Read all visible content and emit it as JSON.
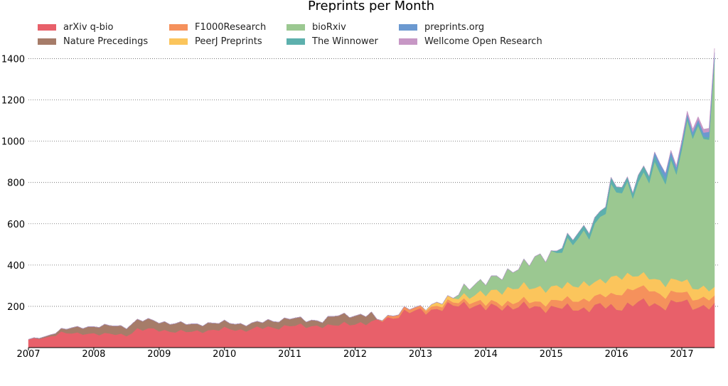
{
  "chart_data": {
    "type": "area",
    "stacked": true,
    "title": "Preprints per Month",
    "xlabel": "",
    "ylabel": "",
    "ylim": [
      0,
      1470
    ],
    "x_start": "2007-01",
    "x_end": "2017-06",
    "xticks": [
      "2007",
      "2008",
      "2009",
      "2010",
      "2011",
      "2012",
      "2013",
      "2014",
      "2015",
      "2016",
      "2017"
    ],
    "yticks": [
      200,
      400,
      600,
      800,
      1000,
      1200,
      1400
    ],
    "grid": "horizontal dotted",
    "legend_position": "top-left, 4 columns",
    "series": [
      {
        "name": "arXiv q-bio",
        "color": "#e8606a",
        "anchors": [
          [
            0,
            40
          ],
          [
            3,
            45
          ],
          [
            6,
            75
          ],
          [
            9,
            65
          ],
          [
            12,
            70
          ],
          [
            15,
            65
          ],
          [
            18,
            60
          ],
          [
            20,
            90
          ],
          [
            24,
            85
          ],
          [
            27,
            80
          ],
          [
            30,
            75
          ],
          [
            33,
            85
          ],
          [
            36,
            90
          ],
          [
            39,
            85
          ],
          [
            42,
            95
          ],
          [
            45,
            95
          ],
          [
            48,
            110
          ],
          [
            51,
            100
          ],
          [
            54,
            110
          ],
          [
            56,
            105
          ],
          [
            60,
            120
          ],
          [
            63,
            120
          ],
          [
            66,
            140
          ],
          [
            69,
            170
          ],
          [
            72,
            175
          ],
          [
            75,
            190
          ],
          [
            78,
            200
          ],
          [
            81,
            215
          ],
          [
            84,
            190
          ],
          [
            87,
            200
          ],
          [
            90,
            200
          ],
          [
            93,
            195
          ],
          [
            96,
            195
          ],
          [
            99,
            190
          ],
          [
            102,
            190
          ],
          [
            105,
            200
          ],
          [
            108,
            195
          ],
          [
            111,
            210
          ],
          [
            114,
            220
          ],
          [
            117,
            200
          ],
          [
            120,
            225
          ],
          [
            123,
            200
          ],
          [
            126,
            195
          ]
        ]
      },
      {
        "name": "Nature Precedings",
        "color": "#a67c69",
        "anchors": [
          [
            0,
            0
          ],
          [
            3,
            5
          ],
          [
            6,
            15
          ],
          [
            9,
            30
          ],
          [
            12,
            35
          ],
          [
            15,
            40
          ],
          [
            18,
            40
          ],
          [
            20,
            45
          ],
          [
            24,
            40
          ],
          [
            27,
            40
          ],
          [
            30,
            35
          ],
          [
            33,
            35
          ],
          [
            36,
            30
          ],
          [
            39,
            30
          ],
          [
            42,
            25
          ],
          [
            45,
            35
          ],
          [
            48,
            35
          ],
          [
            51,
            30
          ],
          [
            54,
            25
          ],
          [
            56,
            45
          ],
          [
            60,
            40
          ],
          [
            63,
            40
          ],
          [
            64,
            0
          ],
          [
            126,
            0
          ]
        ]
      },
      {
        "name": "F1000Research",
        "color": "#f5915c",
        "anchors": [
          [
            0,
            0
          ],
          [
            64,
            0
          ],
          [
            66,
            10
          ],
          [
            69,
            15
          ],
          [
            72,
            15
          ],
          [
            75,
            15
          ],
          [
            78,
            15
          ],
          [
            81,
            20
          ],
          [
            84,
            20
          ],
          [
            87,
            20
          ],
          [
            90,
            25
          ],
          [
            93,
            25
          ],
          [
            96,
            30
          ],
          [
            99,
            40
          ],
          [
            102,
            45
          ],
          [
            105,
            45
          ],
          [
            108,
            70
          ],
          [
            111,
            70
          ],
          [
            114,
            70
          ],
          [
            117,
            50
          ],
          [
            120,
            45
          ],
          [
            123,
            40
          ],
          [
            126,
            40
          ]
        ]
      },
      {
        "name": "PeerJ Preprints",
        "color": "#fbc55c",
        "anchors": [
          [
            0,
            0
          ],
          [
            72,
            0
          ],
          [
            75,
            15
          ],
          [
            78,
            20
          ],
          [
            81,
            25
          ],
          [
            84,
            50
          ],
          [
            87,
            60
          ],
          [
            90,
            70
          ],
          [
            93,
            70
          ],
          [
            96,
            65
          ],
          [
            99,
            70
          ],
          [
            102,
            75
          ],
          [
            105,
            70
          ],
          [
            108,
            85
          ],
          [
            111,
            65
          ],
          [
            114,
            60
          ],
          [
            117,
            60
          ],
          [
            120,
            60
          ],
          [
            123,
            50
          ],
          [
            126,
            45
          ]
        ]
      },
      {
        "name": "bioRxiv",
        "color": "#9bc891",
        "anchors": [
          [
            0,
            0
          ],
          [
            78,
            0
          ],
          [
            80,
            40
          ],
          [
            84,
            60
          ],
          [
            87,
            70
          ],
          [
            90,
            95
          ],
          [
            93,
            140
          ],
          [
            96,
            160
          ],
          [
            99,
            200
          ],
          [
            102,
            230
          ],
          [
            104,
            275
          ],
          [
            107,
            400
          ],
          [
            110,
            420
          ],
          [
            113,
            470
          ],
          [
            116,
            520
          ],
          [
            119,
            570
          ],
          [
            122,
            760
          ],
          [
            124,
            720
          ],
          [
            125,
            840
          ],
          [
            126,
            1040
          ]
        ]
      },
      {
        "name": "The Winnower",
        "color": "#5db0ad",
        "anchors": [
          [
            0,
            0
          ],
          [
            96,
            0
          ],
          [
            98,
            20
          ],
          [
            101,
            25
          ],
          [
            104,
            30
          ],
          [
            106,
            30
          ],
          [
            108,
            28
          ],
          [
            110,
            25
          ],
          [
            112,
            32
          ],
          [
            114,
            30
          ],
          [
            116,
            25
          ],
          [
            118,
            20
          ],
          [
            120,
            18
          ],
          [
            122,
            15
          ],
          [
            124,
            12
          ],
          [
            126,
            10
          ]
        ]
      },
      {
        "name": "preprints.org",
        "color": "#6b99d0",
        "anchors": [
          [
            0,
            0
          ],
          [
            114,
            0
          ],
          [
            115,
            20
          ],
          [
            117,
            30
          ],
          [
            119,
            15
          ],
          [
            121,
            15
          ],
          [
            123,
            18
          ],
          [
            124,
            20
          ],
          [
            125,
            25
          ],
          [
            126,
            30
          ]
        ]
      },
      {
        "name": "Wellcome Open Research",
        "color": "#c797c5",
        "anchors": [
          [
            0,
            0
          ],
          [
            117,
            0
          ],
          [
            118,
            5
          ],
          [
            120,
            10
          ],
          [
            122,
            15
          ],
          [
            124,
            15
          ],
          [
            126,
            20
          ]
        ]
      }
    ]
  }
}
